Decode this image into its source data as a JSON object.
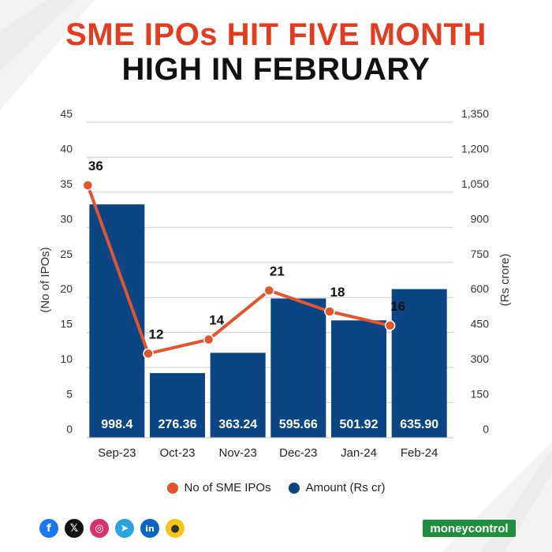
{
  "header": {
    "title_line1": "SME IPOs HIT FIVE MONTH",
    "title_line2": "HIGH IN FEBRUARY"
  },
  "colors": {
    "bar": "#0b4583",
    "line": "#e4552e",
    "title_red": "#e63b1f",
    "brand_green": "#1e8f3e"
  },
  "chart_data": {
    "type": "bar+line",
    "categories": [
      "Sep-23",
      "Oct-23",
      "Nov-23",
      "Dec-23",
      "Jan-24",
      "Feb-24"
    ],
    "series": [
      {
        "name": "Amount (Rs cr)",
        "type": "bar",
        "axis": "right",
        "values": [
          998.4,
          276.36,
          363.24,
          595.66,
          501.92,
          635.9
        ],
        "value_labels": [
          "998.4",
          "276.36",
          "363.24",
          "595.66",
          "501.92",
          "635.90"
        ]
      },
      {
        "name": "No of SME IPOs",
        "type": "line",
        "axis": "left",
        "values": [
          36,
          12,
          14,
          21,
          18,
          16
        ],
        "value_labels": [
          "36",
          "12",
          "14",
          "21",
          "18",
          "16"
        ]
      }
    ],
    "y_left": {
      "label": "(No of IPOs)",
      "range": [
        0,
        45
      ],
      "ticks": [
        "0",
        "5",
        "10",
        "15",
        "20",
        "25",
        "30",
        "35",
        "40",
        "45"
      ]
    },
    "y_right": {
      "label": "(Rs crore)",
      "range": [
        0,
        1350
      ],
      "ticks": [
        "0",
        "150",
        "300",
        "450",
        "600",
        "750",
        "900",
        "1,050",
        "1,200",
        "1,350"
      ]
    },
    "grid": true,
    "legend_position": "bottom"
  },
  "legend": {
    "line_label": "No of SME IPOs",
    "bar_label": "Amount (Rs cr)"
  },
  "footer": {
    "social_icons": [
      "facebook-icon",
      "x-icon",
      "instagram-icon",
      "telegram-icon",
      "linkedin-icon",
      "koo-icon"
    ],
    "icon_glyphs": [
      "f",
      "𝕏",
      "◎",
      "➤",
      "in",
      "●"
    ],
    "brand": "moneycontrol"
  }
}
